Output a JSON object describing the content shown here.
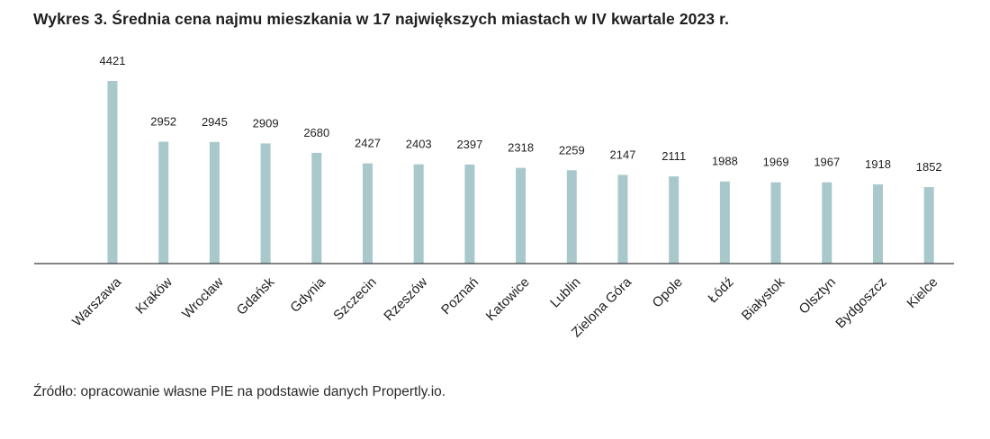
{
  "title": "Wykres 3.  Średnia cena najmu mieszkania w 17 największych miastach w IV kwartale 2023 r.",
  "source": "Źródło: opracowanie własne PIE na podstawie danych Propertly.io.",
  "colors": {
    "bar": "#a9c8cb",
    "axis": "#3a3a3a",
    "text": "#1f1f1f"
  },
  "chart_data": {
    "type": "bar",
    "title": "Średnia cena najmu mieszkania w 17 największych miastach w IV kwartale 2023 r.",
    "xlabel": "",
    "ylabel": "",
    "grid": false,
    "legend": "none",
    "ylim": [
      0,
      4421
    ],
    "categories": [
      "Warszawa",
      "Kraków",
      "Wrocław",
      "Gdańsk",
      "Gdynia",
      "Szczecin",
      "Rzeszów",
      "Poznań",
      "Katowice",
      "Lublin",
      "Zielona Góra",
      "Opole",
      "Łódź",
      "Białystok",
      "Olsztyn",
      "Bydgoszcz",
      "Kielce"
    ],
    "values": [
      4421,
      2952,
      2945,
      2909,
      2680,
      2427,
      2403,
      2397,
      2318,
      2259,
      2147,
      2111,
      1988,
      1969,
      1967,
      1918,
      1852
    ],
    "data_labels": [
      "4421",
      "2952",
      "2945",
      "2909",
      "2680",
      "2427",
      "2403",
      "2397",
      "2318",
      "2259",
      "2147",
      "2111",
      "1988",
      "1969",
      "1967",
      "1918",
      "1852"
    ]
  }
}
